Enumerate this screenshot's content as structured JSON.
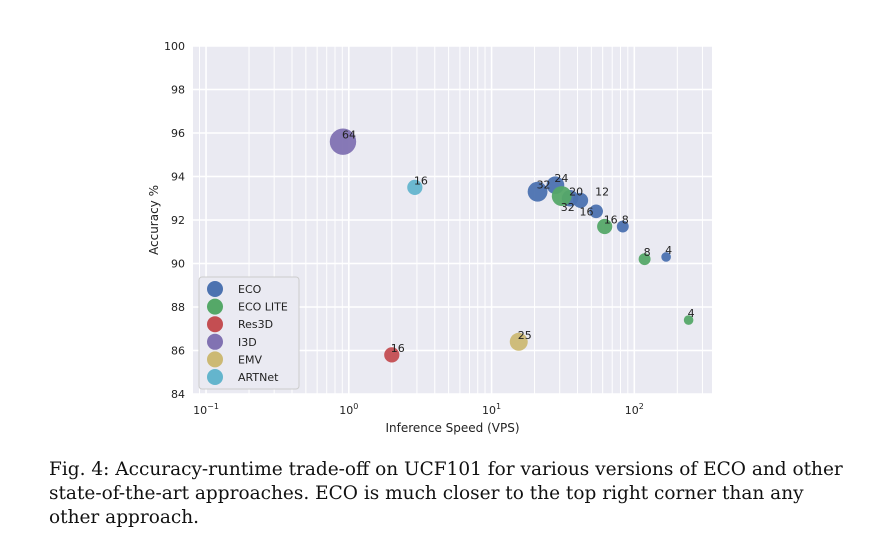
{
  "chart_data": {
    "type": "scatter",
    "xlabel": "Inference Speed (VPS)",
    "ylabel": "Accuracy %",
    "xscale": "log",
    "xlim": [
      0.081,
      350
    ],
    "ylim": [
      84,
      100
    ],
    "xticks": [
      {
        "v": 0.1,
        "b": "10",
        "e": "−1"
      },
      {
        "v": 1,
        "b": "10",
        "e": "0"
      },
      {
        "v": 10,
        "b": "10",
        "e": "1"
      },
      {
        "v": 100,
        "b": "10",
        "e": "2"
      }
    ],
    "yticks": [
      84,
      86,
      88,
      90,
      92,
      94,
      96,
      98,
      100
    ],
    "grid": true,
    "legend": "bottom-left",
    "series": [
      {
        "name": "ECO",
        "color": "#4c72b0",
        "points": [
          [
            21,
            93.3,
            32
          ],
          [
            28,
            93.6,
            24
          ],
          [
            35.5,
            93.0,
            20
          ],
          [
            42,
            92.9,
            16
          ],
          [
            54,
            92.4,
            12
          ],
          [
            83,
            91.7,
            8
          ],
          [
            167,
            90.3,
            4
          ]
        ]
      },
      {
        "name": "ECO LITE",
        "color": "#55a868",
        "points": [
          [
            31,
            93.1,
            32
          ],
          [
            62,
            91.7,
            16
          ],
          [
            118,
            90.2,
            8
          ],
          [
            240,
            87.4,
            4
          ]
        ]
      },
      {
        "name": "Res3D",
        "color": "#c44e52",
        "points": [
          [
            2.0,
            85.8,
            16
          ]
        ]
      },
      {
        "name": "I3D",
        "color": "#8172b2",
        "points": [
          [
            0.91,
            95.6,
            64
          ]
        ]
      },
      {
        "name": "EMV",
        "color": "#ccb974",
        "points": [
          [
            15.5,
            86.4,
            25
          ]
        ]
      },
      {
        "name": "ARTNet",
        "color": "#64b5cd",
        "points": [
          [
            2.9,
            93.5,
            16
          ]
        ]
      }
    ]
  },
  "caption": "Fig. 4: Accuracy-runtime trade-off on UCF101 for various versions of ECO and other state-of-the-art approaches. ECO is much closer to the top right corner than any other approach."
}
